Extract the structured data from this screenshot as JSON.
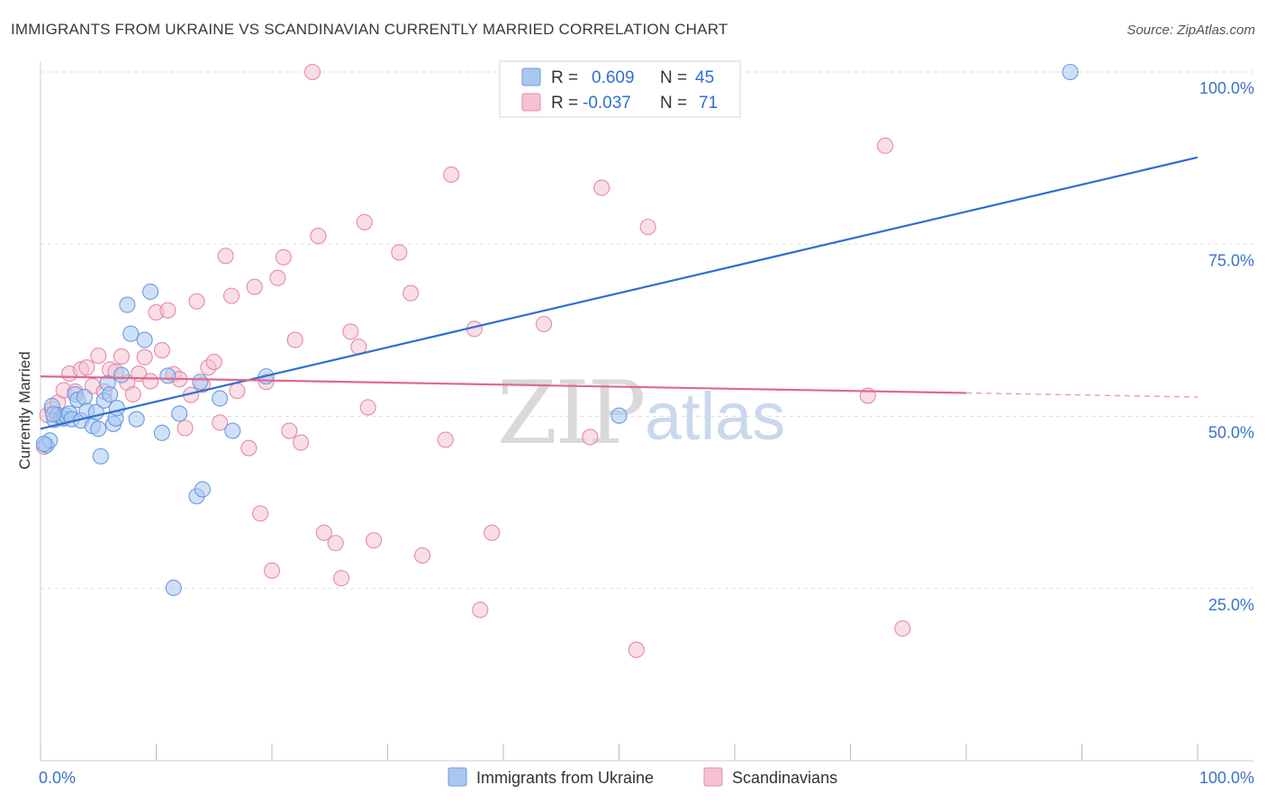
{
  "chart_data": {
    "type": "scatter",
    "title": "IMMIGRANTS FROM UKRAINE VS SCANDINAVIAN CURRENTLY MARRIED CORRELATION CHART",
    "source": "Source: ZipAtlas.com",
    "ylabel": "Currently Married",
    "xlim": [
      0,
      100
    ],
    "ylim": [
      0,
      100
    ],
    "x_tick_labels": [
      "0.0%",
      "100.0%"
    ],
    "y_ticks": [
      {
        "value": 25,
        "label": "25.0%"
      },
      {
        "value": 50,
        "label": "50.0%"
      },
      {
        "value": 75,
        "label": "75.0%"
      },
      {
        "value": 100,
        "label": "100.0%"
      }
    ],
    "watermark": {
      "zip": "ZIP",
      "atlas": "atlas"
    },
    "legend": [
      {
        "r_label": "R =",
        "r_value": "0.609",
        "n_label": "N =",
        "n_value": "45"
      },
      {
        "r_label": "R =",
        "r_value": "-0.037",
        "n_label": "N =",
        "n_value": "71"
      }
    ],
    "series": [
      {
        "name": "Immigrants from Ukraine",
        "color": "#6a9be0",
        "fill": "#a9c8f0",
        "trend": {
          "x0": 0,
          "y0": 48.2,
          "x1": 100,
          "y1": 87.6,
          "color": "#2e6fd0"
        },
        "points": [
          [
            0.5,
            45.8
          ],
          [
            0.8,
            46.5
          ],
          [
            1.0,
            51.5
          ],
          [
            1.2,
            49.5
          ],
          [
            1.5,
            50.2
          ],
          [
            1.8,
            49.8
          ],
          [
            2.0,
            49.7
          ],
          [
            2.2,
            50.1
          ],
          [
            2.5,
            50.4
          ],
          [
            2.7,
            49.6
          ],
          [
            3.0,
            53.2
          ],
          [
            3.2,
            52.4
          ],
          [
            3.5,
            49.4
          ],
          [
            3.8,
            52.8
          ],
          [
            4.0,
            50.8
          ],
          [
            4.5,
            48.6
          ],
          [
            4.8,
            50.6
          ],
          [
            5.0,
            48.2
          ],
          [
            5.2,
            44.2
          ],
          [
            5.5,
            52.3
          ],
          [
            5.8,
            54.8
          ],
          [
            6.0,
            53.2
          ],
          [
            6.3,
            48.9
          ],
          [
            6.5,
            49.7
          ],
          [
            6.6,
            51.2
          ],
          [
            7.0,
            56.0
          ],
          [
            7.5,
            66.2
          ],
          [
            7.8,
            62.0
          ],
          [
            8.3,
            49.6
          ],
          [
            9.0,
            61.1
          ],
          [
            9.5,
            68.1
          ],
          [
            10.5,
            47.6
          ],
          [
            11.0,
            55.9
          ],
          [
            11.5,
            25.1
          ],
          [
            12.0,
            50.4
          ],
          [
            13.5,
            38.4
          ],
          [
            14.0,
            39.4
          ],
          [
            13.8,
            55.0
          ],
          [
            15.5,
            52.6
          ],
          [
            16.6,
            47.9
          ],
          [
            19.5,
            55.8
          ],
          [
            50.0,
            50.1
          ],
          [
            89.0,
            100.0
          ],
          [
            0.3,
            46.0
          ],
          [
            1.1,
            50.3
          ]
        ]
      },
      {
        "name": "Scandinavians",
        "color": "#e58aa8",
        "fill": "#f5c2d2",
        "trend": {
          "x0": 0,
          "y0": 55.8,
          "x1": 80,
          "y1": 53.4,
          "dash_x1": 100,
          "dash_y1": 52.8,
          "color": "#e0688f"
        },
        "points": [
          [
            0.3,
            45.6
          ],
          [
            0.6,
            50.2
          ],
          [
            1.0,
            51.0
          ],
          [
            1.5,
            52.0
          ],
          [
            2.0,
            53.8
          ],
          [
            2.5,
            56.2
          ],
          [
            3.0,
            53.6
          ],
          [
            3.5,
            56.8
          ],
          [
            4.0,
            57.1
          ],
          [
            4.5,
            54.4
          ],
          [
            5.0,
            58.8
          ],
          [
            5.5,
            53.6
          ],
          [
            6.0,
            56.8
          ],
          [
            6.5,
            56.5
          ],
          [
            7.0,
            58.7
          ],
          [
            7.5,
            54.9
          ],
          [
            8.0,
            53.2
          ],
          [
            8.5,
            56.2
          ],
          [
            9.0,
            58.6
          ],
          [
            9.5,
            55.1
          ],
          [
            10.0,
            65.1
          ],
          [
            10.5,
            59.6
          ],
          [
            11.0,
            65.4
          ],
          [
            11.5,
            56.1
          ],
          [
            12.0,
            55.4
          ],
          [
            12.5,
            48.3
          ],
          [
            13.0,
            53.1
          ],
          [
            13.5,
            66.7
          ],
          [
            14.0,
            54.6
          ],
          [
            14.5,
            57.1
          ],
          [
            15.0,
            57.9
          ],
          [
            15.5,
            49.1
          ],
          [
            16.0,
            73.3
          ],
          [
            16.5,
            67.5
          ],
          [
            17.0,
            53.7
          ],
          [
            18.0,
            45.4
          ],
          [
            18.5,
            68.8
          ],
          [
            19.0,
            35.9
          ],
          [
            19.5,
            55.0
          ],
          [
            20.0,
            27.6
          ],
          [
            20.5,
            70.1
          ],
          [
            21.0,
            73.1
          ],
          [
            21.5,
            47.9
          ],
          [
            22.0,
            61.1
          ],
          [
            22.5,
            46.2
          ],
          [
            23.5,
            100.0
          ],
          [
            24.0,
            76.2
          ],
          [
            24.5,
            33.1
          ],
          [
            25.5,
            31.6
          ],
          [
            26.0,
            26.5
          ],
          [
            26.8,
            62.3
          ],
          [
            27.5,
            60.1
          ],
          [
            28.0,
            78.2
          ],
          [
            28.3,
            51.3
          ],
          [
            28.8,
            32.0
          ],
          [
            31.0,
            73.8
          ],
          [
            32.0,
            67.9
          ],
          [
            33.0,
            29.8
          ],
          [
            35.0,
            46.6
          ],
          [
            35.5,
            85.1
          ],
          [
            37.5,
            62.7
          ],
          [
            38.0,
            21.9
          ],
          [
            39.0,
            33.1
          ],
          [
            43.5,
            63.4
          ],
          [
            47.5,
            47.0
          ],
          [
            48.5,
            83.2
          ],
          [
            51.5,
            16.1
          ],
          [
            52.5,
            77.5
          ],
          [
            71.5,
            53.0
          ],
          [
            73.0,
            89.3
          ],
          [
            74.5,
            19.2
          ]
        ]
      }
    ]
  }
}
